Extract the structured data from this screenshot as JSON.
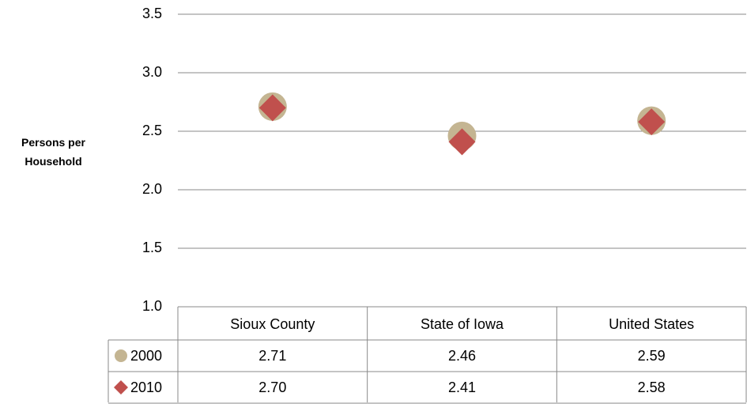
{
  "chart_data": {
    "type": "dot",
    "ylabel": "Persons per Household",
    "categories": [
      "Sioux County",
      "State of Iowa",
      "United States"
    ],
    "series": [
      {
        "name": "2000",
        "color": "#c4b592",
        "marker": "circle",
        "values": [
          2.71,
          2.46,
          2.59
        ],
        "value_labels": [
          "2.71",
          "2.46",
          "2.59"
        ]
      },
      {
        "name": "2010",
        "color": "#c0504d",
        "marker": "diamond",
        "values": [
          2.7,
          2.41,
          2.58
        ],
        "value_labels": [
          "2.70",
          "2.41",
          "2.58"
        ]
      }
    ],
    "ylim": [
      1,
      3.5
    ],
    "yticks": [
      {
        "value": 1,
        "label": "1.0"
      },
      {
        "value": 1.5,
        "label": "1.5"
      },
      {
        "value": 2,
        "label": "2.0"
      },
      2.5,
      {
        "value": 3,
        "label": "3.0"
      },
      3.5
    ],
    "grid": true
  }
}
